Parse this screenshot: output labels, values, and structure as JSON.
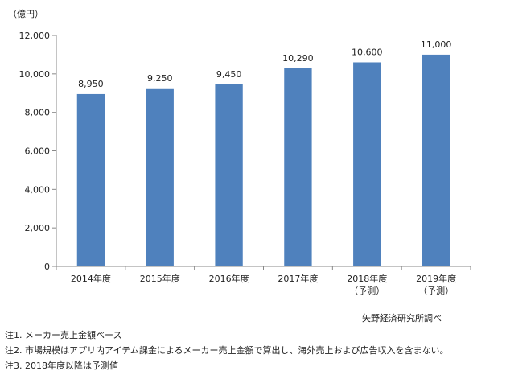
{
  "chart_data": {
    "type": "bar",
    "unit_label": "（億円）",
    "categories": [
      [
        "2014年度"
      ],
      [
        "2015年度"
      ],
      [
        "2016年度"
      ],
      [
        "2017年度"
      ],
      [
        "2018年度",
        "（予測）"
      ],
      [
        "2019年度",
        "（予測）"
      ]
    ],
    "values": [
      8950,
      9250,
      9450,
      10290,
      10600,
      11000
    ],
    "data_labels": [
      "8,950",
      "9,250",
      "9,450",
      "10,290",
      "10,600",
      "11,000"
    ],
    "ylim": [
      0,
      12000
    ],
    "yticks": [
      0,
      2000,
      4000,
      6000,
      8000,
      10000,
      12000
    ],
    "ytick_labels": [
      "0",
      "2,000",
      "4,000",
      "6,000",
      "8,000",
      "10,000",
      "12,000"
    ],
    "grid": false,
    "legend": false,
    "bar_color": "#4f81bd"
  },
  "source": "矢野経済研究所調べ",
  "notes": [
    "注1. メーカー売上金額ベース",
    "注2. 市場規模はアプリ内アイテム課金によるメーカー売上金額で算出し、海外売上および広告収入を含まない。",
    "注3. 2018年度以降は予測値"
  ]
}
